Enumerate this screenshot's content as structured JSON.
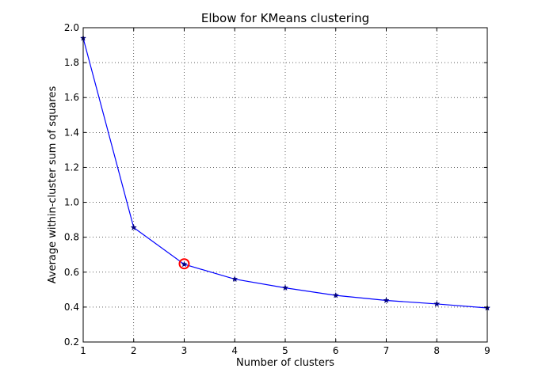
{
  "chart_data": {
    "type": "line",
    "title": "Elbow for KMeans clustering",
    "xlabel": "Number of clusters",
    "ylabel": "Average within-cluster sum of squares",
    "xlim": [
      1,
      9
    ],
    "ylim": [
      0.2,
      2.0
    ],
    "x_ticks": [
      "1",
      "2",
      "3",
      "4",
      "5",
      "6",
      "7",
      "8",
      "9"
    ],
    "y_ticks": [
      "0.2",
      "0.4",
      "0.6",
      "0.8",
      "1.0",
      "1.2",
      "1.4",
      "1.6",
      "1.8",
      "2.0"
    ],
    "grid": true,
    "series": [
      {
        "x": [
          1,
          2,
          3,
          4,
          5,
          6,
          7,
          8,
          9
        ],
        "values": [
          1.94,
          0.855,
          0.645,
          0.56,
          0.51,
          0.467,
          0.438,
          0.418,
          0.395
        ],
        "color": "#0000ff",
        "marker": "star",
        "marker_color": "#000080"
      }
    ],
    "annotations": [
      {
        "type": "circle",
        "x": 3,
        "y": 0.648,
        "color": "#ff0000"
      }
    ]
  }
}
